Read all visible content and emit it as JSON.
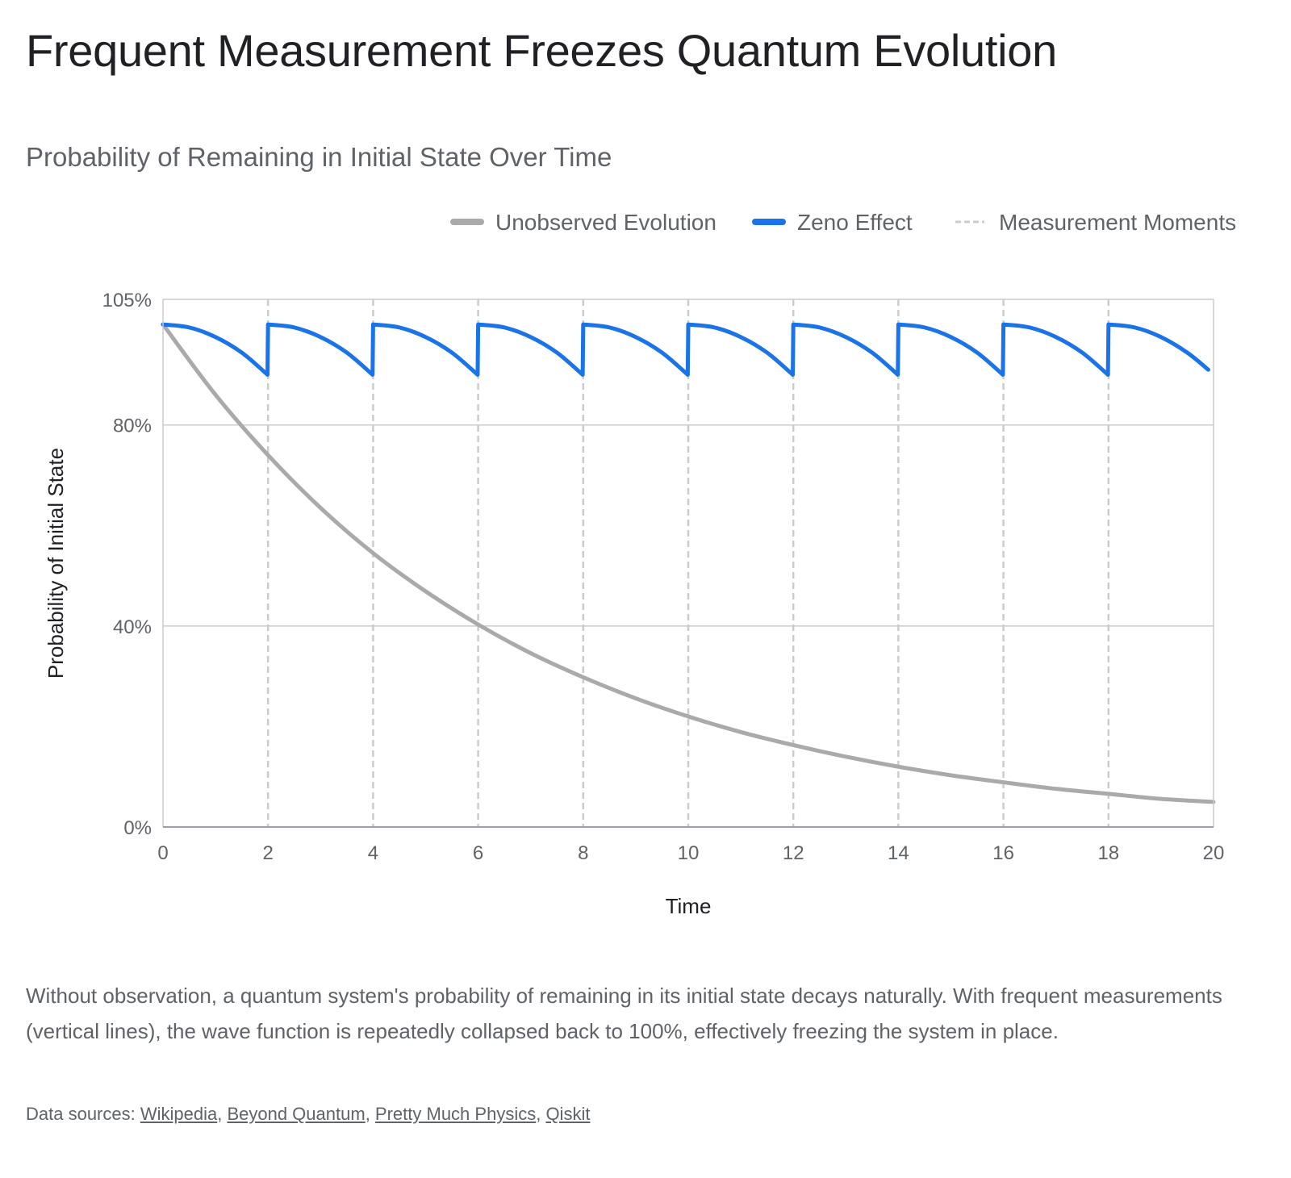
{
  "title": "Frequent Measurement Freezes Quantum Evolution",
  "subtitle": "Probability of Remaining in Initial State Over Time",
  "caption": "Without observation, a quantum system's probability of remaining in its initial state decays naturally. With frequent measurements (vertical lines), the wave function is repeatedly collapsed back to 100%, effectively freezing the system in place.",
  "sources": {
    "prefix": "Data sources: ",
    "links": [
      "Wikipedia",
      "Beyond Quantum",
      "Pretty Much Physics",
      "Qiskit"
    ]
  },
  "colors": {
    "unobserved": "#aaaaaa",
    "zeno": "#1a73e8",
    "measurement": "#cccccc",
    "grid": "#cccccc",
    "axis_text": "#5f6368"
  },
  "chart_data": {
    "type": "line",
    "xlabel": "Time",
    "ylabel": "Probability of Initial State",
    "xlim": [
      0,
      20
    ],
    "ylim": [
      0,
      105
    ],
    "x_ticks": [
      0,
      2,
      4,
      6,
      8,
      10,
      12,
      14,
      16,
      18,
      20
    ],
    "y_ticks": [
      0,
      40,
      80,
      105
    ],
    "y_tick_labels": [
      "0%",
      "40%",
      "80%",
      "105%"
    ],
    "legend_position": "top-right",
    "legend": [
      "Unobserved Evolution",
      "Zeno Effect",
      "Measurement Moments"
    ],
    "measurement_times": [
      2,
      4,
      6,
      8,
      10,
      12,
      14,
      16,
      18
    ],
    "series": [
      {
        "name": "Unobserved Evolution",
        "x": [
          0,
          1,
          2,
          3,
          4,
          5,
          6,
          7,
          8,
          9,
          10,
          11,
          12,
          13,
          14,
          15,
          16,
          17,
          18,
          19,
          20
        ],
        "y": [
          100,
          86,
          74,
          63.5,
          54.5,
          46.9,
          40.3,
          34.6,
          29.8,
          25.6,
          22,
          18.9,
          16.3,
          14,
          12,
          10.3,
          8.9,
          7.6,
          6.6,
          5.6,
          5
        ]
      },
      {
        "name": "Zeno Effect",
        "x": [
          0,
          0.5,
          1,
          1.5,
          1.99,
          2,
          2.5,
          3,
          3.5,
          3.99,
          4,
          4.5,
          5,
          5.5,
          5.99,
          6,
          6.5,
          7,
          7.5,
          7.99,
          8,
          8.5,
          9,
          9.5,
          9.99,
          10,
          10.5,
          11,
          11.5,
          11.99,
          12,
          12.5,
          13,
          13.5,
          13.99,
          14,
          14.5,
          15,
          15.5,
          15.99,
          16,
          16.5,
          17,
          17.5,
          17.99,
          18,
          18.5,
          19,
          19.5,
          19.9
        ],
        "y": [
          100,
          99.4,
          97.5,
          94.4,
          90,
          100,
          99.4,
          97.5,
          94.4,
          90,
          100,
          99.4,
          97.5,
          94.4,
          90,
          100,
          99.4,
          97.5,
          94.4,
          90,
          100,
          99.4,
          97.5,
          94.4,
          90,
          100,
          99.4,
          97.5,
          94.4,
          90,
          100,
          99.4,
          97.5,
          94.4,
          90,
          100,
          99.4,
          97.5,
          94.4,
          90,
          100,
          99.4,
          97.5,
          94.4,
          90,
          100,
          99.4,
          97.5,
          94.4,
          91
        ]
      }
    ]
  }
}
